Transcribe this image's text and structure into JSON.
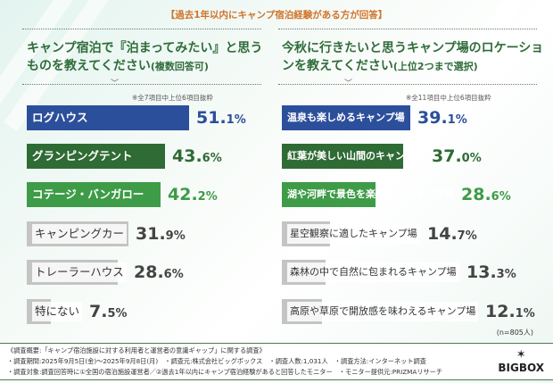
{
  "header": "【過去1年以内にキャンプ宿泊経験がある方が回答】",
  "chart_data": [
    {
      "type": "bar",
      "orientation": "horizontal",
      "title": "キャンプ宿泊で『泊まってみたい』と思うものを教えてください",
      "title_note": "(複数回答可)",
      "note": "※全7項目中上位6項目抜粋",
      "categories": [
        "ログハウス",
        "グランピングテント",
        "コテージ・バンガロー",
        "キャンピングカー",
        "トレーラーハウス",
        "特にない"
      ],
      "values": [
        51.1,
        43.6,
        42.2,
        31.9,
        28.6,
        7.5
      ],
      "labels": [
        "51.1%",
        "43.6%",
        "42.2%",
        "31.9%",
        "28.6%",
        "7.5%"
      ],
      "colors": [
        "#2c4f9c",
        "#2f6b34",
        "#3e9b47",
        "#c4c4c4",
        "#c4c4c4",
        "#c4c4c4"
      ],
      "label_colors": [
        "#ffffff",
        "#ffffff",
        "#ffffff",
        "#333333",
        "#333333",
        "#333333"
      ],
      "value_colors": [
        "#2c4f9c",
        "#2f6b34",
        "#3e9b47",
        "#444444",
        "#444444",
        "#444444"
      ],
      "unit": "%"
    },
    {
      "type": "bar",
      "orientation": "horizontal",
      "title": "今秋に行きたいと思うキャンプ場のロケーションを教えてください",
      "title_note": "(上位2つまで選択)",
      "note": "※全11項目中上位6項目抜粋",
      "categories": [
        "温泉も楽しめるキャンプ場",
        "紅葉が美しい山間のキャンプ場",
        "湖や河畔で景色を楽しめるキャンプ場",
        "星空観察に適したキャンプ場",
        "森林の中で自然に包まれるキャンプ場",
        "高原や草原で開放感を味わえるキャンプ場"
      ],
      "values": [
        39.1,
        37.0,
        28.6,
        14.7,
        13.3,
        12.1
      ],
      "labels": [
        "39.1%",
        "37.0%",
        "28.6%",
        "14.7%",
        "13.3%",
        "12.1%"
      ],
      "colors": [
        "#2c4f9c",
        "#2f6b34",
        "#3e9b47",
        "#c4c4c4",
        "#c4c4c4",
        "#c4c4c4"
      ],
      "label_colors": [
        "#ffffff",
        "#ffffff",
        "#ffffff",
        "#333333",
        "#333333",
        "#333333"
      ],
      "value_colors": [
        "#2c4f9c",
        "#2f6b34",
        "#3e9b47",
        "#444444",
        "#444444",
        "#444444"
      ],
      "unit": "%",
      "sample": "(n=805人)"
    }
  ],
  "footer": {
    "line1": "《調査概要:「キャンプ宿泊施設に対する利用者と運営者の意識ギャップ」に関する調査》",
    "line2": "・調査期間:2025年9月5日(金)～2025年9月8日(月)　・調査元:株式会社ビッグボックス　・調査人数:1,031人　・調査方法:インターネット調査",
    "line3": "・調査対象:調査回答時に①全国の宿泊施設運営者／②過去1年以内にキャンプ宿泊経験があると回答したモニター　・モニター提供元:PRIZMAリサーチ",
    "logo": "BIGBOX"
  }
}
